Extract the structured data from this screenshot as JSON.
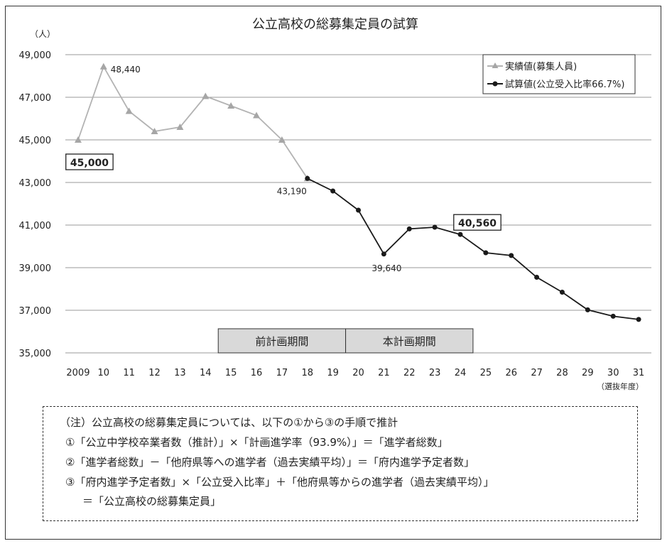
{
  "chart_data": {
    "type": "line",
    "title": "公立高校の総募集定員の試算",
    "ylabel": "（人）",
    "xlabel": "（選抜年度）",
    "ylim": [
      35000,
      49000
    ],
    "yticks": [
      "35,000",
      "37,000",
      "39,000",
      "41,000",
      "43,000",
      "45,000",
      "47,000",
      "49,000"
    ],
    "categories": [
      "2009",
      "10",
      "11",
      "12",
      "13",
      "14",
      "15",
      "16",
      "17",
      "18",
      "19",
      "20",
      "21",
      "22",
      "23",
      "24",
      "25",
      "26",
      "27",
      "28",
      "29",
      "30",
      "31"
    ],
    "grid": true,
    "legend_position": "top-right",
    "series": [
      {
        "name": "実績値(募集人員)",
        "color": "#b3b3b3",
        "marker": "triangle",
        "values": [
          45000,
          48440,
          46350,
          45400,
          45600,
          47050,
          46600,
          46150,
          45000,
          43190,
          null,
          null,
          null,
          null,
          null,
          null,
          null,
          null,
          null,
          null,
          null,
          null,
          null
        ]
      },
      {
        "name": "試算値(公立受入比率66.7%)",
        "color": "#1a1a1a",
        "marker": "circle",
        "values": [
          null,
          null,
          null,
          null,
          null,
          null,
          null,
          null,
          null,
          43190,
          42600,
          41700,
          39640,
          40820,
          40900,
          40560,
          39700,
          39570,
          38550,
          37850,
          37020,
          36720,
          36570
        ]
      }
    ],
    "annotations": [
      {
        "text": "48,440",
        "boxed": false
      },
      {
        "text": "45,000",
        "boxed": true
      },
      {
        "text": "43,190",
        "boxed": false
      },
      {
        "text": "39,640",
        "boxed": false
      },
      {
        "text": "40,560",
        "boxed": true
      }
    ],
    "periods": [
      {
        "label": "前計画期間"
      },
      {
        "label": "本計画期間"
      }
    ]
  },
  "note": {
    "line1": "（注）公立高校の総募集定員については、以下の①から③の手順で推計",
    "line2": "①「公立中学校卒業者数（推計）」×「計画進学率（93.9%）」＝「進学者総数」",
    "line3": "②「進学者総数」－「他府県等への進学者（過去実績平均）」＝「府内進学予定者数」",
    "line4": "③「府内進学予定者数」×「公立受入比率」＋「他府県等からの進学者（過去実績平均）」",
    "line5": "＝「公立高校の総募集定員」"
  }
}
